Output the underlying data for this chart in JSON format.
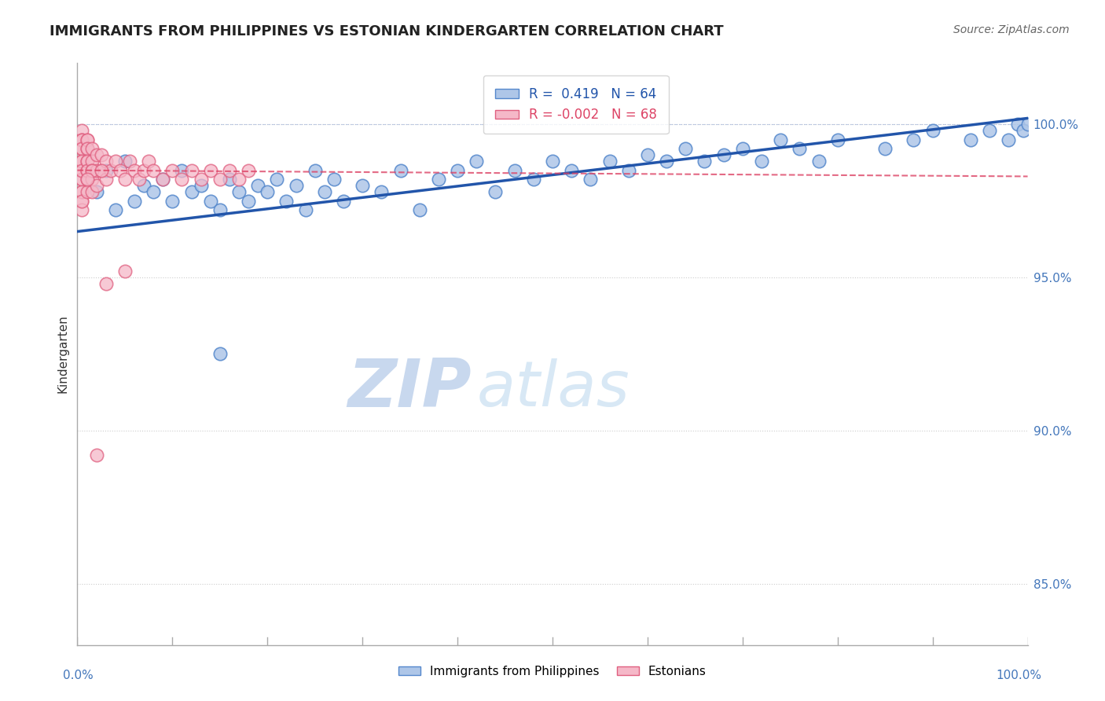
{
  "title": "IMMIGRANTS FROM PHILIPPINES VS ESTONIAN KINDERGARTEN CORRELATION CHART",
  "source": "Source: ZipAtlas.com",
  "ylabel": "Kindergarten",
  "legend_blue_label": "Immigrants from Philippines",
  "legend_pink_label": "Estonians",
  "blue_R": 0.419,
  "blue_N": 64,
  "pink_R": -0.002,
  "pink_N": 68,
  "blue_scatter_x": [
    1.0,
    2.0,
    3.0,
    4.0,
    5.0,
    6.0,
    7.0,
    8.0,
    9.0,
    10.0,
    11.0,
    12.0,
    13.0,
    14.0,
    15.0,
    16.0,
    17.0,
    18.0,
    19.0,
    20.0,
    21.0,
    22.0,
    23.0,
    24.0,
    25.0,
    26.0,
    27.0,
    28.0,
    30.0,
    32.0,
    34.0,
    36.0,
    38.0,
    40.0,
    42.0,
    44.0,
    46.0,
    48.0,
    50.0,
    52.0,
    54.0,
    56.0,
    58.0,
    60.0,
    62.0,
    64.0,
    66.0,
    68.0,
    70.0,
    72.0,
    74.0,
    76.0,
    78.0,
    80.0,
    85.0,
    88.0,
    90.0,
    94.0,
    96.0,
    98.0,
    99.0,
    99.5,
    100.0,
    15.0
  ],
  "blue_scatter_y": [
    98.2,
    97.8,
    98.5,
    97.2,
    98.8,
    97.5,
    98.0,
    97.8,
    98.2,
    97.5,
    98.5,
    97.8,
    98.0,
    97.5,
    97.2,
    98.2,
    97.8,
    97.5,
    98.0,
    97.8,
    98.2,
    97.5,
    98.0,
    97.2,
    98.5,
    97.8,
    98.2,
    97.5,
    98.0,
    97.8,
    98.5,
    97.2,
    98.2,
    98.5,
    98.8,
    97.8,
    98.5,
    98.2,
    98.8,
    98.5,
    98.2,
    98.8,
    98.5,
    99.0,
    98.8,
    99.2,
    98.8,
    99.0,
    99.2,
    98.8,
    99.5,
    99.2,
    98.8,
    99.5,
    99.2,
    99.5,
    99.8,
    99.5,
    99.8,
    99.5,
    100.0,
    99.8,
    100.0,
    92.5
  ],
  "pink_scatter_x": [
    0.5,
    0.5,
    0.5,
    0.5,
    0.5,
    0.5,
    0.5,
    0.5,
    0.5,
    0.5,
    0.5,
    0.5,
    0.5,
    0.5,
    0.5,
    0.5,
    0.5,
    0.5,
    0.5,
    0.5,
    1.0,
    1.0,
    1.0,
    1.0,
    1.0,
    1.0,
    1.0,
    1.0,
    1.0,
    1.0,
    1.5,
    1.5,
    1.5,
    1.5,
    1.5,
    2.0,
    2.0,
    2.0,
    2.5,
    2.5,
    3.0,
    3.0,
    3.5,
    4.0,
    4.5,
    5.0,
    5.5,
    6.0,
    6.5,
    7.0,
    7.5,
    8.0,
    9.0,
    10.0,
    11.0,
    12.0,
    13.0,
    14.0,
    15.0,
    16.0,
    17.0,
    18.0,
    5.0,
    3.0,
    2.0,
    1.5,
    1.0,
    2.5
  ],
  "pink_scatter_y": [
    99.5,
    99.2,
    98.8,
    98.5,
    98.2,
    97.8,
    97.5,
    97.2,
    99.8,
    99.5,
    99.2,
    98.8,
    98.5,
    98.2,
    97.8,
    97.5,
    99.5,
    99.2,
    98.8,
    98.5,
    99.5,
    99.2,
    98.8,
    98.5,
    98.2,
    97.8,
    99.5,
    99.2,
    98.8,
    98.5,
    99.2,
    98.8,
    98.5,
    98.2,
    97.8,
    99.0,
    98.5,
    98.0,
    99.0,
    98.5,
    98.8,
    98.2,
    98.5,
    98.8,
    98.5,
    98.2,
    98.8,
    98.5,
    98.2,
    98.5,
    98.8,
    98.5,
    98.2,
    98.5,
    98.2,
    98.5,
    98.2,
    98.5,
    98.2,
    98.5,
    98.2,
    98.5,
    95.2,
    94.8,
    89.2,
    98.5,
    98.2,
    98.5
  ],
  "blue_color": "#aec6e8",
  "blue_edge_color": "#5588cc",
  "pink_color": "#f5b8c8",
  "pink_edge_color": "#e06080",
  "blue_line_color": "#2255aa",
  "pink_line_color": "#dd4466",
  "watermark_zip_color": "#c8d8ee",
  "watermark_atlas_color": "#d8e8f5",
  "y_ticks": [
    85.0,
    90.0,
    95.0,
    100.0
  ],
  "y_tick_labels": [
    "85.0%",
    "90.0%",
    "95.0%",
    "100.0%"
  ],
  "ylim": [
    83.0,
    102.0
  ],
  "xlim": [
    0.0,
    100.0
  ],
  "blue_line_x": [
    0.0,
    100.0
  ],
  "blue_line_y": [
    96.5,
    100.2
  ],
  "pink_line_x": [
    0.0,
    100.0
  ],
  "pink_line_y": [
    98.5,
    98.3
  ]
}
